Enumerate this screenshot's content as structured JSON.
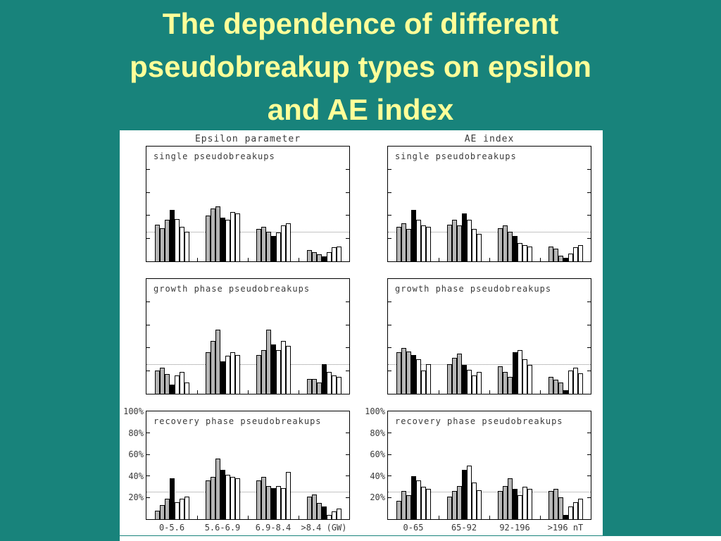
{
  "slide": {
    "title_lines": [
      "The dependence of different",
      "pseudobreakup types on epsilon",
      "and AE index"
    ],
    "background_color": "#18837b",
    "title_color": "#ffff99"
  },
  "figure": {
    "column_headers": [
      "Epsilon parameter",
      "AE index"
    ],
    "y_tick_labels": [
      "100%",
      "80%",
      "60%",
      "40%",
      "20%"
    ],
    "x_axis_labels_left": [
      "0-5.6",
      "5.6-6.9",
      "6.9-8.4",
      ">8.4 (GW)"
    ],
    "x_axis_labels_right": [
      "0-65",
      "65-92",
      "92-196",
      ">196 nT"
    ],
    "bar_palette": {
      "gray": "#b5b5b5",
      "black": "#000000",
      "white": "#ffffff"
    },
    "reference_line_percent": 25
  },
  "chart_data": [
    {
      "type": "bar",
      "title": "single pseudobreakups",
      "panel": "Epsilon parameter",
      "categories": [
        "0-5.6",
        "5.6-6.9",
        "6.9-8.4",
        ">8.4 (GW)"
      ],
      "bar_colors": [
        "gray",
        "gray",
        "gray",
        "black",
        "white",
        "white",
        "white"
      ],
      "groups": [
        [
          32,
          29,
          36,
          45,
          37,
          30,
          26
        ],
        [
          40,
          46,
          48,
          38,
          36,
          43,
          42
        ],
        [
          28,
          30,
          26,
          22,
          25,
          31,
          33
        ],
        [
          10,
          8,
          6,
          4,
          8,
          12,
          13
        ]
      ],
      "ylabel": "%",
      "ylim": [
        0,
        100
      ],
      "reference_line": 25
    },
    {
      "type": "bar",
      "title": "single pseudobreakups",
      "panel": "AE index",
      "categories": [
        "0-65",
        "65-92",
        "92-196",
        ">196 nT"
      ],
      "bar_colors": [
        "gray",
        "gray",
        "gray",
        "black",
        "white",
        "white",
        "white"
      ],
      "groups": [
        [
          30,
          33,
          28,
          45,
          36,
          31,
          30
        ],
        [
          32,
          36,
          31,
          42,
          36,
          28,
          24
        ],
        [
          29,
          31,
          26,
          22,
          16,
          14,
          13
        ],
        [
          13,
          11,
          5,
          3,
          7,
          12,
          14
        ]
      ],
      "ylabel": "%",
      "ylim": [
        0,
        100
      ],
      "reference_line": 25
    },
    {
      "type": "bar",
      "title": "growth phase pseudobreakups",
      "panel": "Epsilon parameter",
      "categories": [
        "0-5.6",
        "5.6-6.9",
        "6.9-8.4",
        ">8.4 (GW)"
      ],
      "bar_colors": [
        "gray",
        "gray",
        "gray",
        "black",
        "white",
        "white",
        "white"
      ],
      "groups": [
        [
          20,
          23,
          17,
          8,
          16,
          19,
          10
        ],
        [
          36,
          46,
          56,
          28,
          33,
          36,
          34
        ],
        [
          34,
          38,
          56,
          43,
          38,
          46,
          42
        ],
        [
          13,
          13,
          10,
          26,
          19,
          16,
          15
        ]
      ],
      "ylabel": "%",
      "ylim": [
        0,
        100
      ],
      "reference_line": 25
    },
    {
      "type": "bar",
      "title": "growth phase pseudobreakups",
      "panel": "AE index",
      "categories": [
        "0-65",
        "65-92",
        "92-196",
        ">196 nT"
      ],
      "bar_colors": [
        "gray",
        "gray",
        "gray",
        "black",
        "white",
        "white",
        "white"
      ],
      "groups": [
        [
          36,
          40,
          37,
          34,
          30,
          20,
          26
        ],
        [
          26,
          31,
          35,
          25,
          21,
          16,
          19
        ],
        [
          24,
          19,
          15,
          36,
          38,
          30,
          25
        ],
        [
          15,
          12,
          10,
          3,
          20,
          23,
          18
        ]
      ],
      "ylabel": "%",
      "ylim": [
        0,
        100
      ],
      "reference_line": 25
    },
    {
      "type": "bar",
      "title": "recovery phase pseudobreakups",
      "panel": "Epsilon parameter",
      "categories": [
        "0-5.6",
        "5.6-6.9",
        "6.9-8.4",
        ">8.4 (GW)"
      ],
      "bar_colors": [
        "gray",
        "gray",
        "gray",
        "black",
        "white",
        "white",
        "white"
      ],
      "groups": [
        [
          8,
          13,
          19,
          38,
          16,
          19,
          21
        ],
        [
          36,
          39,
          56,
          46,
          41,
          39,
          38
        ],
        [
          36,
          39,
          31,
          29,
          31,
          29,
          44
        ],
        [
          21,
          23,
          15,
          12,
          4,
          7,
          10
        ]
      ],
      "ylabel": "%",
      "ylim": [
        0,
        100
      ],
      "reference_line": 25
    },
    {
      "type": "bar",
      "title": "recovery phase pseudobreakups",
      "panel": "AE index",
      "categories": [
        "0-65",
        "65-92",
        "92-196",
        ">196 nT"
      ],
      "bar_colors": [
        "gray",
        "gray",
        "gray",
        "black",
        "white",
        "white",
        "white"
      ],
      "groups": [
        [
          17,
          26,
          22,
          40,
          36,
          30,
          28
        ],
        [
          21,
          26,
          31,
          46,
          50,
          34,
          27
        ],
        [
          26,
          31,
          38,
          28,
          22,
          30,
          28
        ],
        [
          26,
          28,
          20,
          4,
          12,
          16,
          19
        ]
      ],
      "ylabel": "%",
      "ylim": [
        0,
        100
      ],
      "reference_line": 25
    }
  ]
}
